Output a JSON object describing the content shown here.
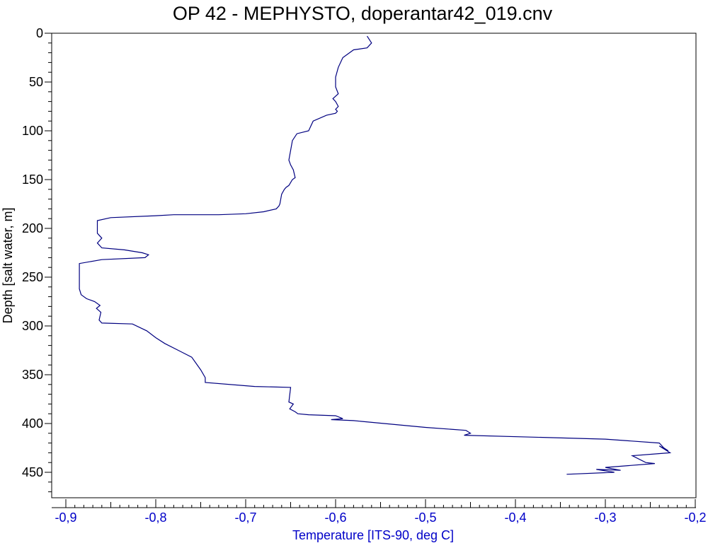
{
  "chart_data": {
    "type": "line",
    "title": "OP 42 - MEPHYSTO, doperantar42_019.cnv",
    "xlabel": "Temperature [ITS-90, deg C]",
    "ylabel": "Depth [salt water, m]",
    "xlim": [
      -0.92,
      -0.2
    ],
    "ylim": [
      0,
      475
    ],
    "y_inverted": true,
    "x_ticks": [
      -0.9,
      -0.8,
      -0.7,
      -0.6,
      -0.5,
      -0.4,
      -0.3,
      -0.2
    ],
    "x_tick_labels": [
      "-0,9",
      "-0,8",
      "-0,7",
      "-0,6",
      "-0,5",
      "-0,4",
      "-0,3",
      "-0,2"
    ],
    "y_ticks": [
      0,
      50,
      100,
      150,
      200,
      250,
      300,
      350,
      400,
      450
    ],
    "y_tick_labels": [
      "0",
      "50",
      "100",
      "150",
      "200",
      "250",
      "300",
      "350",
      "400",
      "450"
    ],
    "grid": false,
    "legend": "none",
    "colors": {
      "line": "#000080",
      "x_axis_text": "#0000c8",
      "axes": "#000000"
    },
    "series": [
      {
        "x": [
          -0.565,
          -0.56,
          -0.565,
          -0.58,
          -0.592,
          -0.597,
          -0.6,
          -0.6,
          -0.597,
          -0.603,
          -0.6,
          -0.597,
          -0.6,
          -0.598,
          -0.6,
          -0.61,
          -0.625,
          -0.63,
          -0.643,
          -0.648,
          -0.65,
          -0.652,
          -0.65,
          -0.647,
          -0.645,
          -0.648,
          -0.652,
          -0.655,
          -0.657,
          -0.66,
          -0.662,
          -0.663,
          -0.666,
          -0.68,
          -0.7,
          -0.73,
          -0.75,
          -0.78,
          -0.8,
          -0.85,
          -0.865,
          -0.865,
          -0.865,
          -0.863,
          -0.86,
          -0.865,
          -0.86,
          -0.835,
          -0.815,
          -0.808,
          -0.812,
          -0.86,
          -0.885,
          -0.885,
          -0.885,
          -0.883,
          -0.877,
          -0.868,
          -0.862,
          -0.866,
          -0.861,
          -0.863,
          -0.86,
          -0.826,
          -0.81,
          -0.8,
          -0.79,
          -0.775,
          -0.76,
          -0.75,
          -0.745,
          -0.745,
          -0.69,
          -0.65,
          -0.652,
          -0.647,
          -0.651,
          -0.645,
          -0.642,
          -0.63,
          -0.6,
          -0.592,
          -0.605,
          -0.58,
          -0.5,
          -0.455,
          -0.45,
          -0.457,
          -0.3,
          -0.24,
          -0.235,
          -0.23,
          -0.24,
          -0.228,
          -0.27,
          -0.255,
          -0.245,
          -0.3,
          -0.283,
          -0.31,
          -0.29,
          -0.343
        ],
        "y": [
          3,
          10,
          15,
          17,
          25,
          35,
          45,
          55,
          62,
          67,
          70,
          75,
          78,
          80,
          82,
          84,
          90,
          100,
          103,
          110,
          120,
          130,
          135,
          140,
          148,
          150,
          156,
          158,
          160,
          165,
          175,
          177,
          180,
          183,
          185,
          186,
          186,
          186,
          187,
          189,
          192,
          200,
          205,
          207,
          210,
          215,
          220,
          222,
          225,
          227,
          230,
          232,
          236,
          250,
          262,
          268,
          272,
          275,
          279,
          282,
          286,
          294,
          297,
          298,
          305,
          312,
          318,
          325,
          332,
          345,
          353,
          358,
          362,
          363,
          378,
          380,
          385,
          388,
          390,
          391,
          392,
          395,
          396,
          397,
          404,
          407,
          410,
          412,
          416,
          420,
          425,
          428,
          423,
          430,
          433,
          440,
          441,
          445,
          448,
          447,
          450,
          452
        ]
      }
    ]
  }
}
